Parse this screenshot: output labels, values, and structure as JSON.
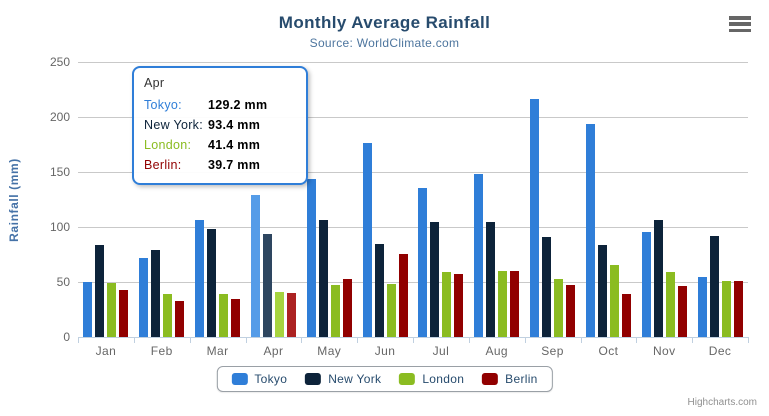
{
  "header": {
    "title": "Monthly Average Rainfall",
    "subtitle": "Source: WorldClimate.com"
  },
  "menu": {
    "label": "Chart context menu"
  },
  "credits": {
    "label": "Highcharts.com"
  },
  "chart_data": {
    "type": "bar",
    "title": "Monthly Average Rainfall",
    "subtitle": "Source: WorldClimate.com",
    "xlabel": "",
    "ylabel": "Rainfall (mm)",
    "categories": [
      "Jan",
      "Feb",
      "Mar",
      "Apr",
      "May",
      "Jun",
      "Jul",
      "Aug",
      "Sep",
      "Oct",
      "Nov",
      "Dec"
    ],
    "series": [
      {
        "name": "Tokyo",
        "color": "#2f7ed8",
        "hover_color": "#559ce8",
        "values": [
          49.9,
          71.5,
          106.4,
          129.2,
          144.0,
          176.0,
          135.6,
          148.5,
          216.4,
          194.1,
          95.6,
          54.4
        ]
      },
      {
        "name": "New York",
        "color": "#0d233a",
        "hover_color": "#2e4660",
        "values": [
          83.6,
          78.8,
          98.5,
          93.4,
          106.0,
          84.5,
          105.0,
          104.3,
          91.2,
          83.5,
          106.6,
          92.3
        ]
      },
      {
        "name": "London",
        "color": "#8bbc21",
        "hover_color": "#a6d43f",
        "values": [
          48.9,
          38.8,
          39.3,
          41.4,
          47.0,
          48.3,
          59.0,
          59.6,
          52.4,
          65.2,
          59.3,
          51.2
        ]
      },
      {
        "name": "Berlin",
        "color": "#910000",
        "hover_color": "#ac2222",
        "values": [
          42.4,
          33.2,
          34.5,
          39.7,
          52.6,
          75.5,
          57.4,
          60.4,
          47.6,
          39.1,
          46.8,
          51.1
        ]
      }
    ],
    "ylim": [
      0,
      250
    ],
    "ytick_interval": 50,
    "grid": true,
    "legend_position": "bottom",
    "hover": {
      "category": "Apr",
      "category_index": 3
    }
  },
  "tooltip": {
    "header": "Apr",
    "border_color": "#2f7ed8",
    "rows": [
      {
        "label": "Tokyo:",
        "value": "129.2 mm",
        "color": "#2f7ed8"
      },
      {
        "label": "New York:",
        "value": "93.4 mm",
        "color": "#0d233a"
      },
      {
        "label": "London:",
        "value": "41.4 mm",
        "color": "#8bbc21"
      },
      {
        "label": "Berlin:",
        "value": "39.7 mm",
        "color": "#910000"
      }
    ]
  },
  "colors": {
    "title": "#274b6d",
    "subtitle": "#4d759e",
    "axis_label": "#666666",
    "axis_line": "#c0d0e0",
    "gridline": "#c9c9c9",
    "yaxis_title": "#4572a7",
    "legend_text": "#274b6d",
    "credits": "#909090"
  }
}
